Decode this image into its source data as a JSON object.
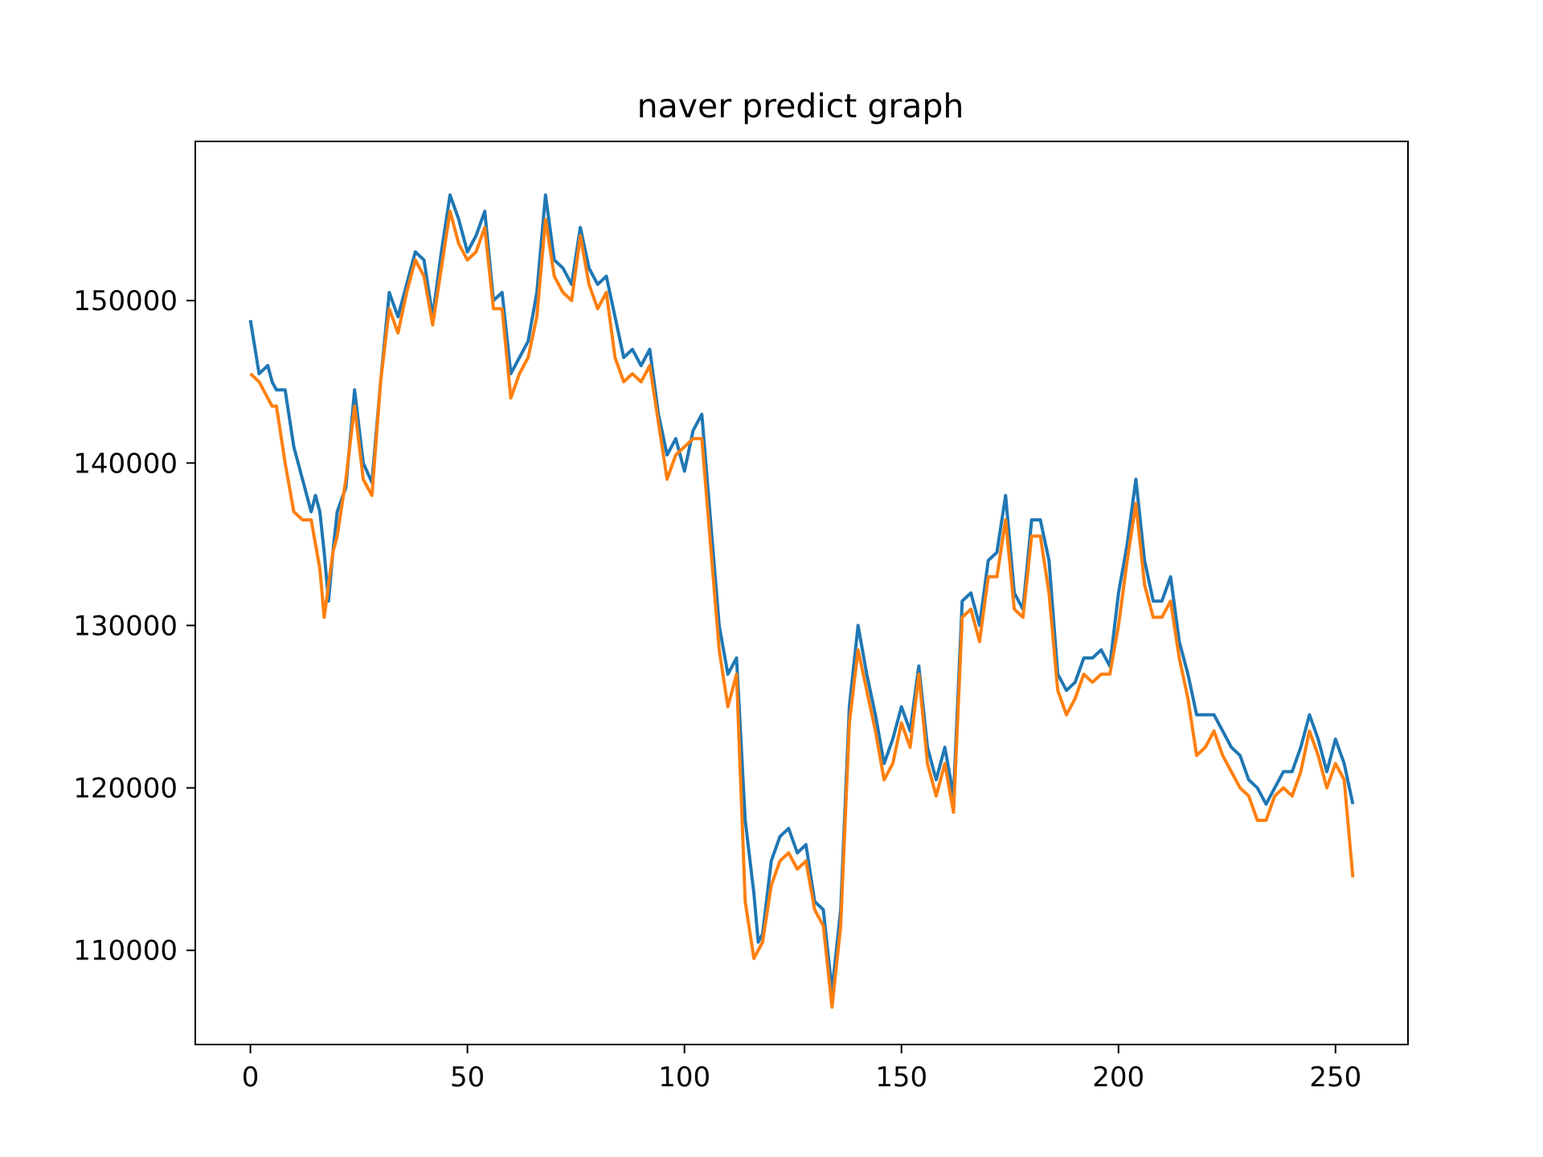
{
  "chart_data": {
    "type": "line",
    "title": "naver predict graph",
    "xlabel": "",
    "ylabel": "",
    "xlim": [
      -12.7,
      266.7
    ],
    "ylim": [
      104200,
      159800
    ],
    "xticks": [
      0,
      50,
      100,
      150,
      200,
      250
    ],
    "xtick_labels": [
      "0",
      "50",
      "100",
      "150",
      "200",
      "250"
    ],
    "yticks": [
      110000,
      120000,
      130000,
      140000,
      150000
    ],
    "ytick_labels": [
      "110000",
      "120000",
      "130000",
      "140000",
      "150000"
    ],
    "grid": false,
    "legend": "none",
    "series": [
      {
        "color": "#1f77b4",
        "x": [
          0,
          2,
          4,
          5,
          6,
          8,
          10,
          12,
          14,
          15,
          16,
          17,
          18,
          19,
          20,
          22,
          24,
          26,
          28,
          30,
          32,
          34,
          36,
          38,
          40,
          42,
          44,
          46,
          48,
          50,
          52,
          54,
          56,
          58,
          60,
          62,
          64,
          66,
          68,
          70,
          72,
          74,
          76,
          78,
          80,
          82,
          84,
          86,
          88,
          90,
          92,
          94,
          96,
          98,
          100,
          102,
          104,
          106,
          108,
          110,
          112,
          114,
          116,
          117,
          118,
          120,
          122,
          124,
          126,
          128,
          130,
          132,
          134,
          136,
          138,
          140,
          142,
          144,
          146,
          148,
          150,
          152,
          154,
          156,
          158,
          160,
          162,
          164,
          166,
          168,
          170,
          172,
          174,
          176,
          178,
          180,
          182,
          184,
          186,
          188,
          190,
          192,
          194,
          196,
          198,
          200,
          202,
          204,
          206,
          208,
          210,
          212,
          214,
          216,
          218,
          220,
          222,
          224,
          226,
          228,
          230,
          232,
          234,
          236,
          238,
          240,
          242,
          244,
          246,
          248,
          250,
          252,
          254
        ],
        "y": [
          148800,
          145500,
          146000,
          145000,
          144500,
          144500,
          141000,
          139000,
          137000,
          138000,
          137000,
          134500,
          131500,
          134500,
          137000,
          138500,
          144500,
          140000,
          138800,
          145000,
          150500,
          149000,
          151000,
          153000,
          152500,
          149000,
          153000,
          156500,
          155000,
          153000,
          154000,
          155500,
          150000,
          150500,
          145500,
          146500,
          147500,
          150500,
          156500,
          152500,
          152000,
          151000,
          154500,
          152000,
          151000,
          151500,
          149000,
          146500,
          147000,
          146000,
          147000,
          143000,
          140500,
          141500,
          139500,
          142000,
          143000,
          136500,
          130000,
          127000,
          128000,
          118000,
          113500,
          110500,
          111000,
          115500,
          117000,
          117500,
          116000,
          116500,
          113000,
          112500,
          107500,
          112500,
          125000,
          130000,
          127000,
          124500,
          121500,
          123000,
          125000,
          123500,
          127500,
          122500,
          120500,
          122500,
          119500,
          131500,
          132000,
          130000,
          134000,
          134500,
          138000,
          132000,
          131000,
          136500,
          136500,
          134000,
          127000,
          126000,
          126500,
          128000,
          128000,
          128500,
          127500,
          132000,
          135000,
          139000,
          134000,
          131500,
          131500,
          133000,
          129000,
          127000,
          124500,
          124500,
          124500,
          123500,
          122500,
          122000,
          120500,
          120000,
          119000,
          120000,
          121000,
          121000,
          122500,
          124500,
          123000,
          121000,
          123000,
          121500,
          119000
        ]
      },
      {
        "color": "#ff7f0e",
        "x": [
          0,
          2,
          4,
          5,
          6,
          8,
          10,
          12,
          14,
          15,
          16,
          17,
          18,
          19,
          20,
          22,
          24,
          26,
          28,
          30,
          32,
          34,
          36,
          38,
          40,
          42,
          44,
          46,
          48,
          50,
          52,
          54,
          56,
          58,
          60,
          62,
          64,
          66,
          68,
          70,
          72,
          74,
          76,
          78,
          80,
          82,
          84,
          86,
          88,
          90,
          92,
          94,
          96,
          98,
          100,
          102,
          104,
          106,
          108,
          110,
          112,
          114,
          116,
          117,
          118,
          120,
          122,
          124,
          126,
          128,
          130,
          132,
          134,
          136,
          138,
          140,
          142,
          144,
          146,
          148,
          150,
          152,
          154,
          156,
          158,
          160,
          162,
          164,
          166,
          168,
          170,
          172,
          174,
          176,
          178,
          180,
          182,
          184,
          186,
          188,
          190,
          192,
          194,
          196,
          198,
          200,
          202,
          204,
          206,
          208,
          210,
          212,
          214,
          216,
          218,
          220,
          222,
          224,
          226,
          228,
          230,
          232,
          234,
          236,
          238,
          240,
          242,
          244,
          246,
          248,
          250,
          252,
          254
        ],
        "y": [
          145500,
          145000,
          144000,
          143500,
          143500,
          140000,
          137000,
          136500,
          136500,
          135000,
          133500,
          130500,
          132500,
          134500,
          135500,
          139000,
          143500,
          139000,
          138000,
          145000,
          149500,
          148000,
          150500,
          152500,
          151500,
          148500,
          152000,
          155500,
          153500,
          152500,
          153000,
          154500,
          149500,
          149500,
          144000,
          145500,
          146500,
          149000,
          155000,
          151500,
          150500,
          150000,
          154000,
          151000,
          149500,
          150500,
          146500,
          145000,
          145500,
          145000,
          146000,
          142500,
          139000,
          140500,
          141000,
          141500,
          141500,
          135000,
          128500,
          125000,
          127000,
          113000,
          109500,
          110000,
          110500,
          114000,
          115500,
          116000,
          115000,
          115500,
          112500,
          111500,
          106500,
          111500,
          124000,
          128500,
          126000,
          123500,
          120500,
          121500,
          124000,
          122500,
          127000,
          121500,
          119500,
          121500,
          118500,
          130500,
          131000,
          129000,
          133000,
          133000,
          136500,
          131000,
          130500,
          135500,
          135500,
          132000,
          126000,
          124500,
          125500,
          127000,
          126500,
          127000,
          127000,
          130000,
          134000,
          137500,
          132500,
          130500,
          130500,
          131500,
          128000,
          125500,
          122000,
          122500,
          123500,
          122000,
          121000,
          120000,
          119500,
          118000,
          118000,
          119500,
          120000,
          119500,
          121000,
          123500,
          122000,
          120000,
          121500,
          120500,
          114500
        ]
      }
    ]
  }
}
